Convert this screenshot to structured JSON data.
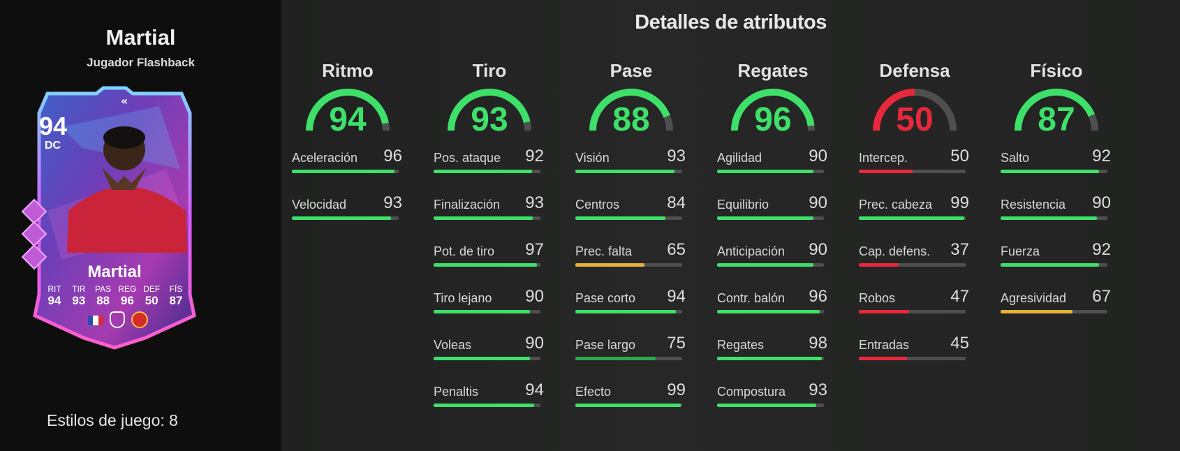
{
  "player": {
    "name": "Martial",
    "subtitle": "Jugador Flashback",
    "rating": "94",
    "position": "DC",
    "card_name": "Martial",
    "card_stats": [
      {
        "abbr": "RIT",
        "value": "94"
      },
      {
        "abbr": "TIR",
        "value": "93"
      },
      {
        "abbr": "PAS",
        "value": "88"
      },
      {
        "abbr": "REG",
        "value": "96"
      },
      {
        "abbr": "DEF",
        "value": "50"
      },
      {
        "abbr": "FÍS",
        "value": "87"
      }
    ],
    "estilos": "Estilos de juego: 8"
  },
  "details_title": "Detalles de atributos",
  "colors": {
    "green": "#3ee06a",
    "yellow": "#e5b23a",
    "red": "#e8283c",
    "track": "#4f4f4f",
    "dark_green": "#2ea84c"
  },
  "categories": [
    {
      "name": "Ritmo",
      "value": 94,
      "color": "#3ee06a",
      "stats": [
        {
          "label": "Aceleración",
          "value": 96,
          "color": "#3ee06a"
        },
        {
          "label": "Velocidad",
          "value": 93,
          "color": "#3ee06a"
        }
      ]
    },
    {
      "name": "Tiro",
      "value": 93,
      "color": "#3ee06a",
      "stats": [
        {
          "label": "Pos. ataque",
          "value": 92,
          "color": "#3ee06a"
        },
        {
          "label": "Finalización",
          "value": 93,
          "color": "#3ee06a"
        },
        {
          "label": "Pot. de tiro",
          "value": 97,
          "color": "#3ee06a"
        },
        {
          "label": "Tiro lejano",
          "value": 90,
          "color": "#3ee06a"
        },
        {
          "label": "Voleas",
          "value": 90,
          "color": "#3ee06a"
        },
        {
          "label": "Penaltis",
          "value": 94,
          "color": "#3ee06a"
        }
      ]
    },
    {
      "name": "Pase",
      "value": 88,
      "color": "#3ee06a",
      "stats": [
        {
          "label": "Visión",
          "value": 93,
          "color": "#3ee06a"
        },
        {
          "label": "Centros",
          "value": 84,
          "color": "#3ee06a"
        },
        {
          "label": "Prec. falta",
          "value": 65,
          "color": "#e5b23a"
        },
        {
          "label": "Pase corto",
          "value": 94,
          "color": "#3ee06a"
        },
        {
          "label": "Pase largo",
          "value": 75,
          "color": "#2ea84c"
        },
        {
          "label": "Efecto",
          "value": 99,
          "color": "#3ee06a"
        }
      ]
    },
    {
      "name": "Regates",
      "value": 96,
      "color": "#3ee06a",
      "stats": [
        {
          "label": "Agilidad",
          "value": 90,
          "color": "#3ee06a"
        },
        {
          "label": "Equilibrio",
          "value": 90,
          "color": "#3ee06a"
        },
        {
          "label": "Anticipación",
          "value": 90,
          "color": "#3ee06a"
        },
        {
          "label": "Contr. balón",
          "value": 96,
          "color": "#3ee06a"
        },
        {
          "label": "Regates",
          "value": 98,
          "color": "#3ee06a"
        },
        {
          "label": "Compostura",
          "value": 93,
          "color": "#3ee06a"
        }
      ]
    },
    {
      "name": "Defensa",
      "value": 50,
      "color": "#e8283c",
      "stats": [
        {
          "label": "Intercep.",
          "value": 50,
          "color": "#e8283c"
        },
        {
          "label": "Prec. cabeza",
          "value": 99,
          "color": "#3ee06a"
        },
        {
          "label": "Cap. defens.",
          "value": 37,
          "color": "#e8283c"
        },
        {
          "label": "Robos",
          "value": 47,
          "color": "#e8283c"
        },
        {
          "label": "Entradas",
          "value": 45,
          "color": "#e8283c"
        }
      ]
    },
    {
      "name": "Físico",
      "value": 87,
      "color": "#3ee06a",
      "stats": [
        {
          "label": "Salto",
          "value": 92,
          "color": "#3ee06a"
        },
        {
          "label": "Resistencia",
          "value": 90,
          "color": "#3ee06a"
        },
        {
          "label": "Fuerza",
          "value": 92,
          "color": "#3ee06a"
        },
        {
          "label": "Agresividad",
          "value": 67,
          "color": "#e5b23a"
        }
      ]
    }
  ]
}
